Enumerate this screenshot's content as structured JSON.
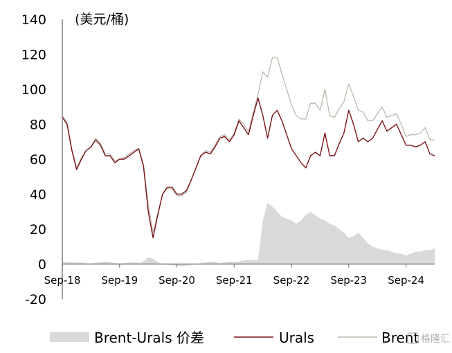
{
  "chart_data": {
    "type": "line",
    "unit_label": "(美元/桶)",
    "title": "",
    "xlabel": "",
    "ylabel": "",
    "ylim": [
      -20,
      140
    ],
    "yticks": [
      "140",
      "120",
      "100",
      "80",
      "60",
      "40",
      "20",
      "0",
      "-20"
    ],
    "yticks_values": [
      140,
      120,
      100,
      80,
      60,
      40,
      20,
      0,
      -20
    ],
    "xlim": [
      "2018-09",
      "2025-03"
    ],
    "xticks": [
      {
        "label": "Sep-18",
        "date": "2018-09"
      },
      {
        "label": "Sep-19",
        "date": "2019-09"
      },
      {
        "label": "Sep-20",
        "date": "2020-09"
      },
      {
        "label": "Sep-21",
        "date": "2021-09"
      },
      {
        "label": "Sep-22",
        "date": "2022-09"
      },
      {
        "label": "Sep-23",
        "date": "2023-09"
      },
      {
        "label": "Sep-24",
        "date": "2024-09"
      }
    ],
    "grid": false,
    "legend_position": "bottom",
    "x": [
      "2018-09",
      "2018-10",
      "2018-11",
      "2018-12",
      "2019-01",
      "2019-02",
      "2019-03",
      "2019-04",
      "2019-05",
      "2019-06",
      "2019-07",
      "2019-08",
      "2019-09",
      "2019-10",
      "2019-11",
      "2019-12",
      "2020-01",
      "2020-02",
      "2020-03",
      "2020-04",
      "2020-05",
      "2020-06",
      "2020-07",
      "2020-08",
      "2020-09",
      "2020-10",
      "2020-11",
      "2020-12",
      "2021-01",
      "2021-02",
      "2021-03",
      "2021-04",
      "2021-05",
      "2021-06",
      "2021-07",
      "2021-08",
      "2021-09",
      "2021-10",
      "2021-11",
      "2021-12",
      "2022-01",
      "2022-02",
      "2022-03",
      "2022-04",
      "2022-05",
      "2022-06",
      "2022-07",
      "2022-08",
      "2022-09",
      "2022-10",
      "2022-11",
      "2022-12",
      "2023-01",
      "2023-02",
      "2023-03",
      "2023-04",
      "2023-05",
      "2023-06",
      "2023-07",
      "2023-08",
      "2023-09",
      "2023-10",
      "2023-11",
      "2023-12",
      "2024-01",
      "2024-02",
      "2024-03",
      "2024-04",
      "2024-05",
      "2024-06",
      "2024-07",
      "2024-08",
      "2024-09",
      "2024-10",
      "2024-11",
      "2024-12",
      "2025-01",
      "2025-02",
      "2025-03"
    ],
    "series": [
      {
        "name": "Brent-Urals 价差",
        "type": "area",
        "color": "#d9d9d9",
        "values": [
          1.5,
          1.2,
          1.0,
          0.8,
          1.0,
          0.5,
          0.2,
          0.8,
          1.2,
          1.5,
          1.2,
          0.5,
          0.3,
          0.5,
          0.8,
          1.0,
          0.5,
          1.5,
          4.0,
          3.0,
          1.0,
          0.0,
          -0.5,
          -0.8,
          -1.0,
          -1.2,
          -1.0,
          -0.5,
          0.0,
          0.5,
          1.0,
          1.5,
          1.2,
          0.5,
          1.0,
          1.5,
          1.2,
          1.5,
          2.0,
          2.5,
          2.0,
          2.5,
          25.0,
          35.0,
          33.0,
          30.0,
          27.0,
          26.0,
          25.0,
          23.0,
          25.0,
          28.0,
          30.0,
          28.0,
          26.0,
          25.0,
          23.0,
          22.0,
          20.0,
          18.0,
          15.0,
          16.0,
          18.0,
          15.0,
          12.0,
          10.0,
          9.0,
          8.0,
          8.0,
          7.0,
          6.0,
          6.0,
          5.0,
          6.0,
          7.0,
          7.0,
          8.0,
          8.0,
          9.0
        ]
      },
      {
        "name": "Urals",
        "type": "line",
        "color": "#7b1416",
        "values": [
          84,
          80,
          65,
          54,
          60,
          65,
          67,
          71,
          68,
          62,
          62,
          58,
          60,
          60,
          62,
          64,
          66,
          56,
          30,
          15,
          28,
          40,
          44,
          44,
          40,
          40,
          42,
          48,
          55,
          62,
          64,
          63,
          67,
          72,
          73,
          70,
          74,
          82,
          78,
          74,
          85,
          95,
          85,
          72,
          85,
          88,
          82,
          74,
          66,
          62,
          58,
          55,
          62,
          64,
          62,
          75,
          62,
          62,
          69,
          75,
          88,
          80,
          70,
          72,
          70,
          72,
          77,
          82,
          76,
          78,
          80,
          74,
          68,
          68,
          67,
          68,
          70,
          63,
          62
        ]
      },
      {
        "name": "Brent",
        "type": "line",
        "color": "#bdb8ad",
        "values": [
          85,
          81,
          66,
          55,
          61,
          65,
          67,
          72,
          69,
          63,
          63,
          59,
          60,
          61,
          63,
          65,
          66,
          57,
          34,
          18,
          29,
          40,
          43,
          43,
          39,
          39,
          41,
          48,
          55,
          62,
          65,
          64,
          68,
          73,
          74,
          71,
          75,
          83,
          80,
          76,
          87,
          97,
          110,
          107,
          118,
          118,
          109,
          100,
          91,
          85,
          83,
          83,
          92,
          92,
          88,
          100,
          85,
          84,
          89,
          93,
          103,
          96,
          88,
          87,
          82,
          82,
          86,
          90,
          84,
          85,
          86,
          80,
          73,
          74,
          74,
          75,
          78,
          71,
          71
        ]
      }
    ]
  },
  "watermark": "格隆汇"
}
